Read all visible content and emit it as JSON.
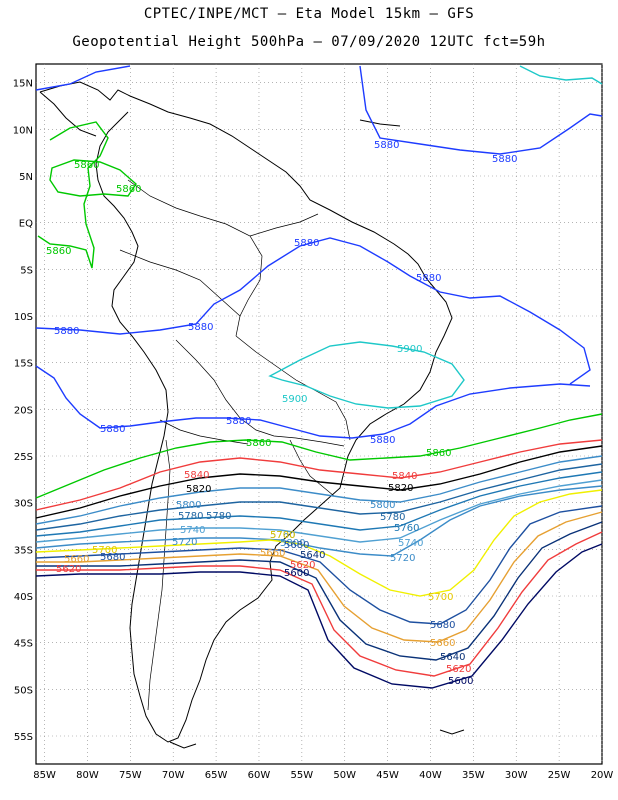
{
  "title_line1": "CPTEC/INPE/MCT –  Eta Model 15km – GFS",
  "title_line2": "Geopotential Height 500hPa – 07/09/2020 12UTC fct=59h",
  "map": {
    "lon_range": [
      -86,
      -20
    ],
    "lat_range": [
      -58,
      17
    ],
    "lat_labels": [
      "15N",
      "10N",
      "5N",
      "EQ",
      "5S",
      "10S",
      "15S",
      "20S",
      "25S",
      "30S",
      "35S",
      "40S",
      "45S",
      "50S",
      "55S"
    ],
    "lon_labels": [
      "85W",
      "80W",
      "75W",
      "70W",
      "65W",
      "60W",
      "55W",
      "50W",
      "45W",
      "40W",
      "35W",
      "30W",
      "25W",
      "20W"
    ],
    "grid": "dotted",
    "contour_unit": "gpm"
  },
  "contours": [
    {
      "level": "5900",
      "color": "#1ec8c8"
    },
    {
      "level": "5880",
      "color": "#1e3cff"
    },
    {
      "level": "5860",
      "color": "#00c800"
    },
    {
      "level": "5840",
      "color": "#f03c3c"
    },
    {
      "level": "5820",
      "color": "#000000"
    },
    {
      "level": "5800",
      "color": "#3c8cc8"
    },
    {
      "level": "5780",
      "color": "#1e64a0"
    },
    {
      "level": "5760",
      "color": "#1e78b4"
    },
    {
      "level": "5740",
      "color": "#50a0d2"
    },
    {
      "level": "5720",
      "color": "#3c8cc8"
    },
    {
      "level": "5700",
      "color": "#f0f000"
    },
    {
      "level": "5680",
      "color": "#1e50a0"
    },
    {
      "level": "5660",
      "color": "#e6a032"
    },
    {
      "level": "5640",
      "color": "#0a3278"
    },
    {
      "level": "5620",
      "color": "#f03c3c"
    },
    {
      "level": "5600",
      "color": "#000a64"
    }
  ],
  "labels": {
    "l5900a": "5900",
    "l5900b": "5900",
    "l5880a": "5880",
    "l5880b": "5880",
    "l5880c": "5880",
    "l5880d": "5880",
    "l5880e": "5880",
    "l5880f": "5880",
    "l5880g": "5880",
    "l5880h": "5880",
    "l5880i": "5880",
    "l5860a": "5860",
    "l5860b": "5860",
    "l5860c": "5860",
    "l5860d": "5860",
    "l5860e": "5860",
    "l5840a": "5840",
    "l5840b": "5840",
    "l5820a": "5820",
    "l5820b": "5820",
    "l5800a": "5800",
    "l5800b": "5800",
    "l5800c": "5800",
    "l5780a": "5780",
    "l5780b": "5780",
    "l5780c": "5780",
    "l5760a": "5760",
    "l5760b": "5760",
    "l5740a": "5740",
    "l5740b": "5740",
    "l5720a": "5720",
    "l5720b": "5720",
    "l5700a": "5700",
    "l5700b": "5700",
    "l5700c": "5700",
    "l5680a": "5680",
    "l5680b": "5680",
    "l5680c": "5680",
    "l5660a": "5660",
    "l5660b": "5660",
    "l5660c": "5660",
    "l5640a": "5640",
    "l5640b": "5640",
    "l5620a": "5620",
    "l5620b": "5620",
    "l5620c": "5620",
    "l5600a": "5600",
    "l5600b": "5600"
  }
}
